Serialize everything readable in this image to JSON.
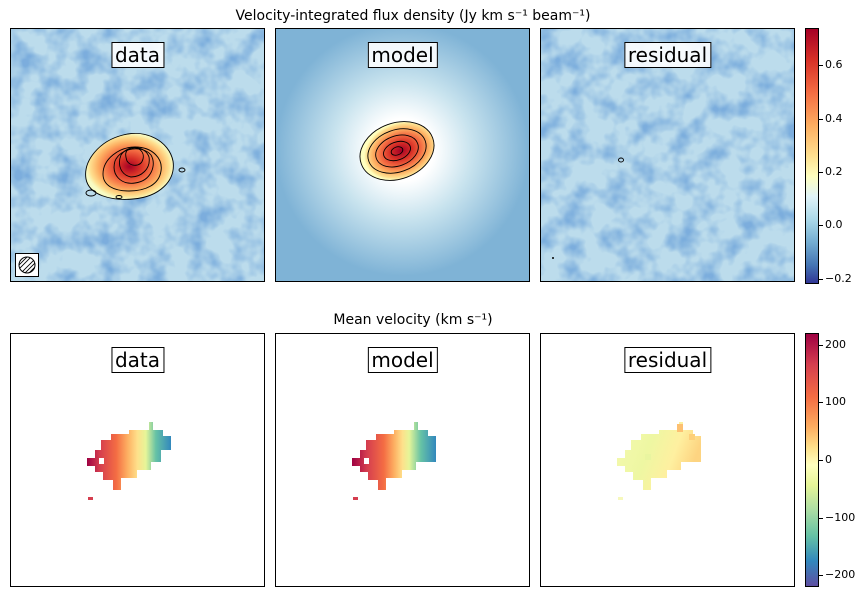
{
  "rows": [
    {
      "title": "Velocity-integrated flux density",
      "title_unit": "(Jy km s⁻¹ beam⁻¹)",
      "panels": [
        "data",
        "model",
        "residual"
      ],
      "colorbar": {
        "ticks": [
          "0.6",
          "0.4",
          "0.2",
          "0.0",
          "−0.2"
        ],
        "tick_values": [
          0.6,
          0.4,
          0.2,
          0.0,
          -0.2
        ],
        "vmin": -0.22,
        "vmax": 0.74
      }
    },
    {
      "title": "Mean velocity",
      "title_unit": "(km s⁻¹)",
      "panels": [
        "data",
        "model",
        "residual"
      ],
      "colorbar": {
        "ticks": [
          "200",
          "100",
          "0",
          "−100",
          "−200"
        ],
        "tick_values": [
          200,
          100,
          0,
          -100,
          -200
        ],
        "vmin": -220,
        "vmax": 220
      }
    }
  ],
  "chart_data": [
    {
      "type": "heatmap",
      "title": "Velocity-integrated flux density (Jy km s^-1 beam^-1)",
      "panels": [
        "data",
        "model",
        "residual"
      ],
      "colormap": "RdYlBu_r",
      "clim": [
        -0.22,
        0.74
      ],
      "peak_value": 0.72,
      "contours": true,
      "beam_shown": true
    },
    {
      "type": "heatmap",
      "title": "Mean velocity (km s^-1)",
      "panels": [
        "data",
        "model",
        "residual"
      ],
      "colormap": "Spectral_r",
      "clim": [
        -220,
        220
      ],
      "gradient_range_data": [
        -200,
        200
      ],
      "residual_range": [
        -20,
        60
      ]
    }
  ]
}
